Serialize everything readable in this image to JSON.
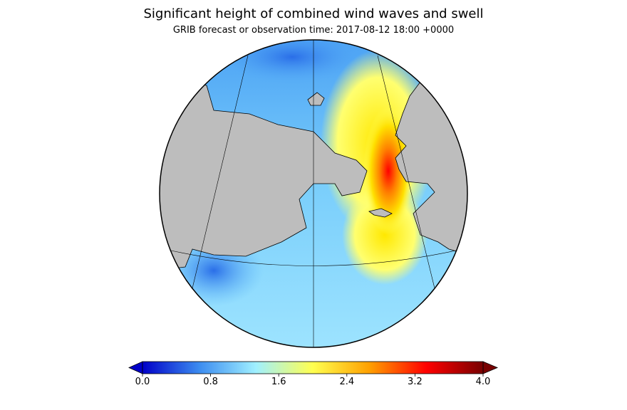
{
  "title": "Significant height of combined wind waves and swell",
  "subtitle": "GRIB forecast or observation time: 2017-08-12 18:00 +0000",
  "colorbar": {
    "lim": [
      0,
      4
    ],
    "colors": [
      "#0000c8",
      "#3c8cf0",
      "#a0f0ff",
      "#ffff50",
      "#ffa000",
      "#ff0000",
      "#780000"
    ],
    "ticks": [
      {
        "value": 0,
        "label": "0.0"
      },
      {
        "value": 0.8,
        "label": "0.8"
      },
      {
        "value": 1.6,
        "label": "1.6"
      },
      {
        "value": 2.4,
        "label": "2.4"
      },
      {
        "value": 3.2,
        "label": "3.2"
      },
      {
        "value": 4,
        "label": "4.0"
      }
    ]
  }
}
